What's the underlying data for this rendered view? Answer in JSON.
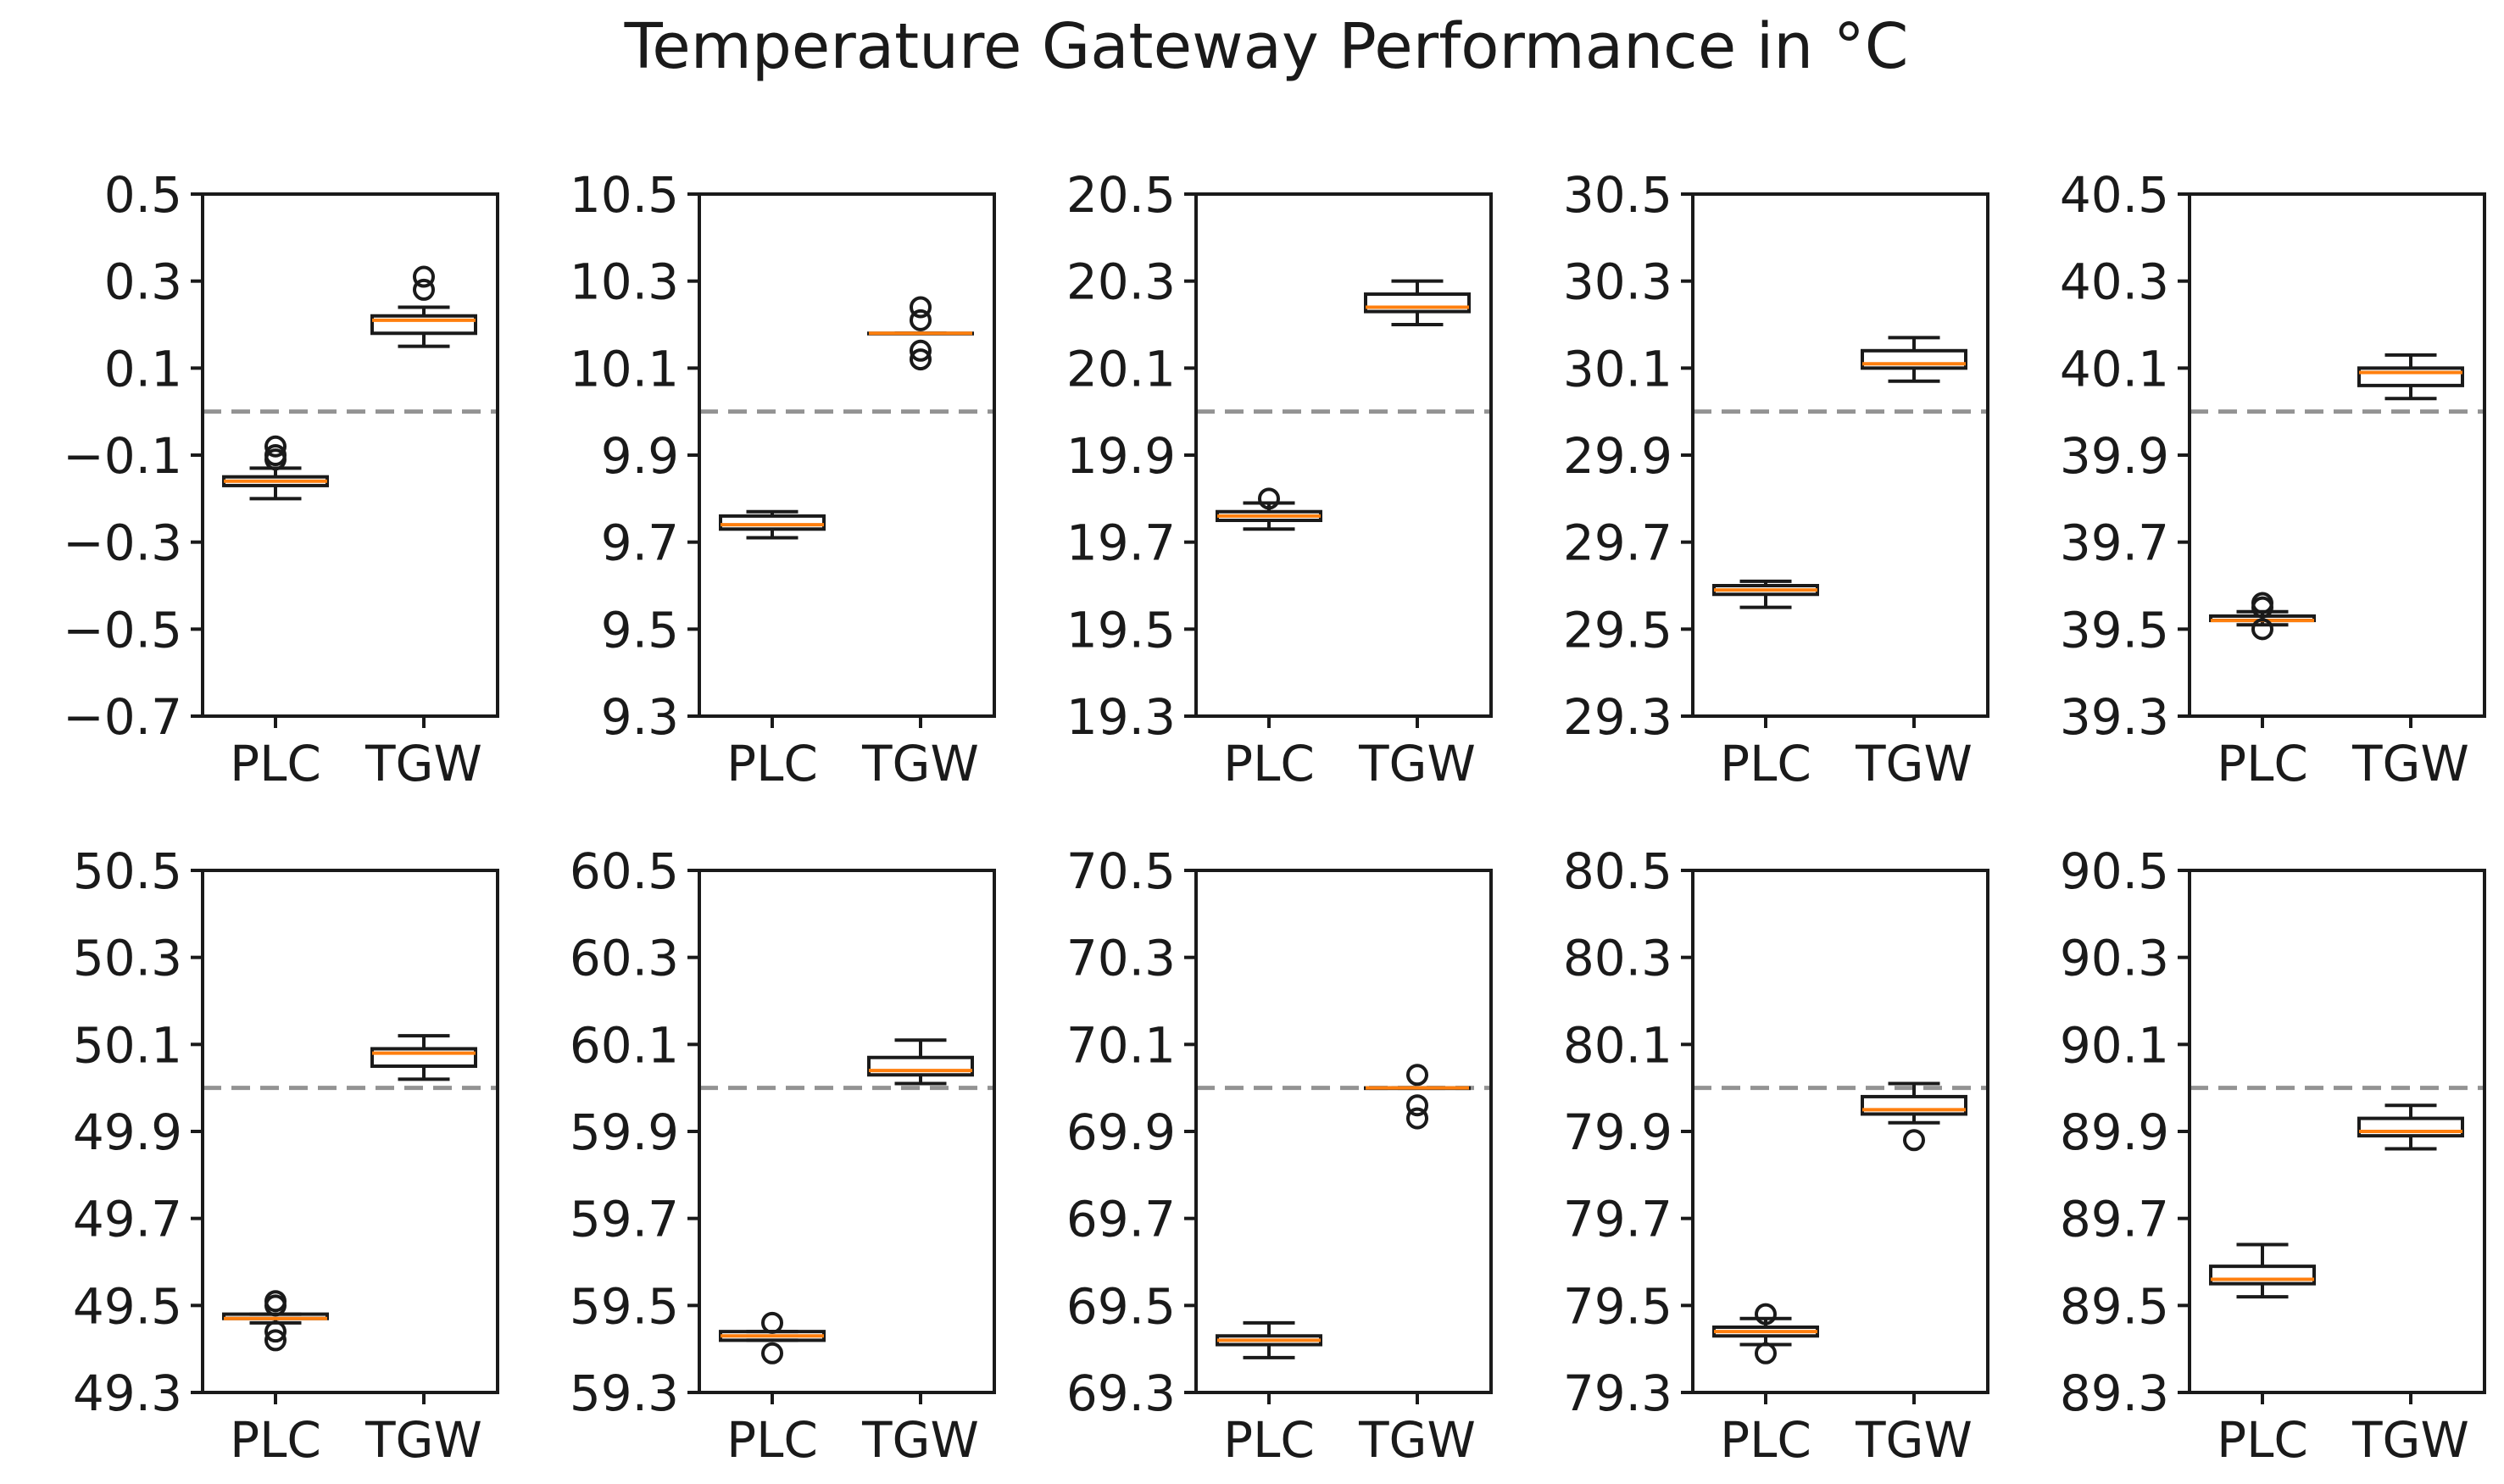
{
  "chart_data": {
    "title": "Temperature Gateway Performance in °C",
    "type": "boxplot",
    "categories": [
      "PLC",
      "TGW"
    ],
    "colors": {
      "median": "#ff7f0e",
      "reference_line": "#939393",
      "box": "#1a1a1a"
    },
    "panels": [
      {
        "reference": 0.0,
        "ylim": [
          -0.7,
          0.5
        ],
        "yticks": [
          "0.5",
          "0.3",
          "0.1",
          "−0.1",
          "−0.3",
          "−0.5",
          "−0.7"
        ],
        "series": [
          {
            "name": "PLC",
            "whislo": -0.2,
            "q1": -0.17,
            "med": -0.16,
            "q3": -0.15,
            "whishi": -0.13,
            "fliers": [
              -0.08,
              -0.1,
              -0.11
            ]
          },
          {
            "name": "TGW",
            "whislo": 0.15,
            "q1": 0.18,
            "med": 0.21,
            "q3": 0.22,
            "whishi": 0.24,
            "fliers": [
              0.31,
              0.28
            ]
          }
        ]
      },
      {
        "reference": 10.0,
        "ylim": [
          9.3,
          10.5
        ],
        "yticks": [
          "10.5",
          "10.3",
          "10.1",
          "9.9",
          "9.7",
          "9.5",
          "9.3"
        ],
        "series": [
          {
            "name": "PLC",
            "whislo": 9.71,
            "q1": 9.73,
            "med": 9.74,
            "q3": 9.76,
            "whishi": 9.77,
            "fliers": []
          },
          {
            "name": "TGW",
            "whislo": 10.18,
            "q1": 10.18,
            "med": 10.18,
            "q3": 10.18,
            "whishi": 10.18,
            "fliers": [
              10.24,
              10.21,
              10.14,
              10.12
            ]
          }
        ]
      },
      {
        "reference": 20.0,
        "ylim": [
          19.3,
          20.5
        ],
        "yticks": [
          "20.5",
          "20.3",
          "20.1",
          "19.9",
          "19.7",
          "19.5",
          "19.3"
        ],
        "series": [
          {
            "name": "PLC",
            "whislo": 19.73,
            "q1": 19.75,
            "med": 19.76,
            "q3": 19.77,
            "whishi": 19.79,
            "fliers": [
              19.8
            ]
          },
          {
            "name": "TGW",
            "whislo": 20.2,
            "q1": 20.23,
            "med": 20.24,
            "q3": 20.27,
            "whishi": 20.3,
            "fliers": []
          }
        ]
      },
      {
        "reference": 30.0,
        "ylim": [
          29.3,
          30.5
        ],
        "yticks": [
          "30.5",
          "30.3",
          "30.1",
          "29.9",
          "29.7",
          "29.5",
          "29.3"
        ],
        "series": [
          {
            "name": "PLC",
            "whislo": 29.55,
            "q1": 29.58,
            "med": 29.59,
            "q3": 29.6,
            "whishi": 29.61,
            "fliers": []
          },
          {
            "name": "TGW",
            "whislo": 30.07,
            "q1": 30.1,
            "med": 30.11,
            "q3": 30.14,
            "whishi": 30.17,
            "fliers": []
          }
        ]
      },
      {
        "reference": 40.0,
        "ylim": [
          39.3,
          40.5
        ],
        "yticks": [
          "40.5",
          "40.3",
          "40.1",
          "39.9",
          "39.7",
          "39.5",
          "39.3"
        ],
        "series": [
          {
            "name": "PLC",
            "whislo": 39.51,
            "q1": 39.52,
            "med": 39.52,
            "q3": 39.53,
            "whishi": 39.54,
            "fliers": [
              39.56,
              39.55,
              39.5
            ]
          },
          {
            "name": "TGW",
            "whislo": 40.03,
            "q1": 40.06,
            "med": 40.09,
            "q3": 40.1,
            "whishi": 40.13,
            "fliers": []
          }
        ]
      },
      {
        "reference": 50.0,
        "ylim": [
          49.3,
          50.5
        ],
        "yticks": [
          "50.5",
          "50.3",
          "50.1",
          "49.9",
          "49.7",
          "49.5",
          "49.3"
        ],
        "series": [
          {
            "name": "PLC",
            "whislo": 49.46,
            "q1": 49.47,
            "med": 49.47,
            "q3": 49.48,
            "whishi": 49.48,
            "fliers": [
              49.51,
              49.5,
              49.44,
              49.42
            ]
          },
          {
            "name": "TGW",
            "whislo": 50.02,
            "q1": 50.05,
            "med": 50.08,
            "q3": 50.09,
            "whishi": 50.12,
            "fliers": []
          }
        ]
      },
      {
        "reference": 60.0,
        "ylim": [
          59.3,
          60.5
        ],
        "yticks": [
          "60.5",
          "60.3",
          "60.1",
          "59.9",
          "59.7",
          "59.5",
          "59.3"
        ],
        "series": [
          {
            "name": "PLC",
            "whislo": 59.42,
            "q1": 59.42,
            "med": 59.43,
            "q3": 59.44,
            "whishi": 59.44,
            "fliers": [
              59.46,
              59.39
            ]
          },
          {
            "name": "TGW",
            "whislo": 60.01,
            "q1": 60.03,
            "med": 60.04,
            "q3": 60.07,
            "whishi": 60.11,
            "fliers": []
          }
        ]
      },
      {
        "reference": 70.0,
        "ylim": [
          69.3,
          70.5
        ],
        "yticks": [
          "70.5",
          "70.3",
          "70.1",
          "69.9",
          "69.7",
          "69.5",
          "69.3"
        ],
        "series": [
          {
            "name": "PLC",
            "whislo": 69.38,
            "q1": 69.41,
            "med": 69.42,
            "q3": 69.43,
            "whishi": 69.46,
            "fliers": []
          },
          {
            "name": "TGW",
            "whislo": 70.0,
            "q1": 70.0,
            "med": 70.0,
            "q3": 70.0,
            "whishi": 70.0,
            "fliers": [
              70.03,
              69.96,
              69.93
            ]
          }
        ]
      },
      {
        "reference": 80.0,
        "ylim": [
          79.3,
          80.5
        ],
        "yticks": [
          "80.5",
          "80.3",
          "80.1",
          "79.9",
          "79.7",
          "79.5",
          "79.3"
        ],
        "series": [
          {
            "name": "PLC",
            "whislo": 79.41,
            "q1": 79.43,
            "med": 79.44,
            "q3": 79.45,
            "whishi": 79.47,
            "fliers": [
              79.48,
              79.39
            ]
          },
          {
            "name": "TGW",
            "whislo": 79.92,
            "q1": 79.94,
            "med": 79.95,
            "q3": 79.98,
            "whishi": 80.01,
            "fliers": [
              79.88
            ]
          }
        ]
      },
      {
        "reference": 90.0,
        "ylim": [
          89.3,
          90.5
        ],
        "yticks": [
          "90.5",
          "90.3",
          "90.1",
          "89.9",
          "89.7",
          "89.5",
          "89.3"
        ],
        "series": [
          {
            "name": "PLC",
            "whislo": 89.52,
            "q1": 89.55,
            "med": 89.56,
            "q3": 89.59,
            "whishi": 89.64,
            "fliers": []
          },
          {
            "name": "TGW",
            "whislo": 89.86,
            "q1": 89.89,
            "med": 89.9,
            "q3": 89.93,
            "whishi": 89.96,
            "fliers": []
          }
        ]
      }
    ]
  }
}
